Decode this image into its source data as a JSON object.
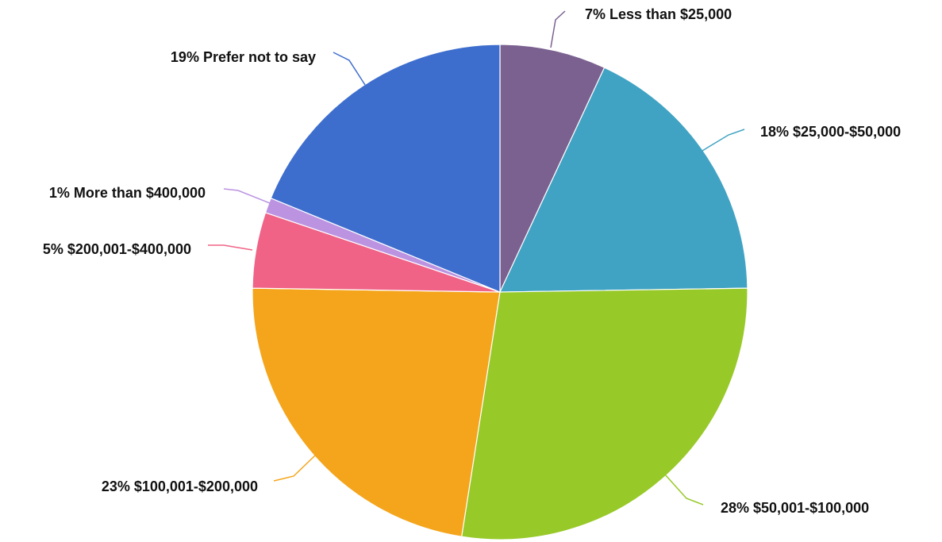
{
  "chart_data": {
    "type": "pie",
    "slices": [
      {
        "category": "Less than $25,000",
        "value": 7,
        "label": "7% Less than $25,000",
        "color": "#7b6190"
      },
      {
        "category": "$25,000-$50,000",
        "value": 18,
        "label": "18% $25,000-$50,000",
        "color": "#41a3c3"
      },
      {
        "category": "$50,001-$100,000",
        "value": 28,
        "label": "28% $50,001-$100,000",
        "color": "#97c928"
      },
      {
        "category": "$100,001-$200,000",
        "value": 23,
        "label": "23% $100,001-$200,000",
        "color": "#f4a51c"
      },
      {
        "category": "$200,001-$400,000",
        "value": 5,
        "label": "5% $200,001-$400,000",
        "color": "#f06386"
      },
      {
        "category": "More than $400,000",
        "value": 1,
        "label": "1% More than $400,000",
        "color": "#bb93e1"
      },
      {
        "category": "Prefer not to say",
        "value": 19,
        "label": "19% Prefer not to say",
        "color": "#3e6ecd"
      }
    ],
    "start_angle": "12 o'clock",
    "direction": "clockwise",
    "legend": "none (labels beside slices)"
  }
}
